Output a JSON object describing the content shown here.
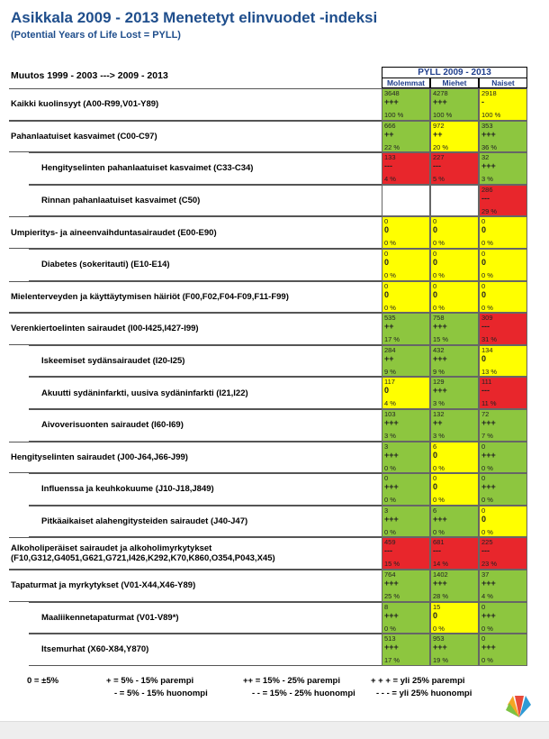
{
  "header": {
    "title": "Asikkala 2009 - 2013 Menetetyt elinvuodet -indeksi",
    "subtitle": "(Potential Years of Life Lost = PYLL)",
    "change": "Muutos 1999 - 2003 ---> 2009 - 2013"
  },
  "table": {
    "group": "PYLL 2009 - 2013",
    "columns": [
      "Molemmat",
      "Miehet",
      "Naiset"
    ],
    "colors": {
      "green": "#8dc63f",
      "yellow": "#ffff00",
      "red": "#e8262c",
      "white": "#ffffff"
    },
    "rows": [
      {
        "label": "Kaikki kuolinsyyt (A00-R99,V01-Y89)",
        "indent": false,
        "cells": [
          {
            "value": 3648,
            "sign": "+++",
            "pct": "100 %",
            "color": "green"
          },
          {
            "value": 4278,
            "sign": "+++",
            "pct": "100 %",
            "color": "green"
          },
          {
            "value": 2918,
            "sign": "-",
            "pct": "100 %",
            "color": "yellow"
          }
        ]
      },
      {
        "label": "Pahanlaatuiset kasvaimet (C00-C97)",
        "indent": false,
        "cells": [
          {
            "value": 666,
            "sign": "++",
            "pct": "22 %",
            "color": "green"
          },
          {
            "value": 972,
            "sign": "++",
            "pct": "20 %",
            "color": "yellow"
          },
          {
            "value": 353,
            "sign": "+++",
            "pct": "36 %",
            "color": "green"
          }
        ]
      },
      {
        "label": "Hengityselinten pahanlaatuiset kasvaimet (C33-C34)",
        "indent": true,
        "cells": [
          {
            "value": 133,
            "sign": "---",
            "pct": "4 %",
            "color": "red"
          },
          {
            "value": 227,
            "sign": "---",
            "pct": "5 %",
            "color": "red"
          },
          {
            "value": 32,
            "sign": "+++",
            "pct": "3 %",
            "color": "green"
          }
        ]
      },
      {
        "label": "Rinnan pahanlaatuiset kasvaimet (C50)",
        "indent": true,
        "cells": [
          {
            "color": "white"
          },
          {
            "color": "white"
          },
          {
            "value": 286,
            "sign": "---",
            "pct": "29 %",
            "color": "red"
          }
        ]
      },
      {
        "label": "Umpieritys- ja aineenvaihduntasairaudet (E00-E90)",
        "indent": false,
        "cells": [
          {
            "value": 0,
            "sign": "0",
            "pct": "0 %",
            "color": "yellow"
          },
          {
            "value": 0,
            "sign": "0",
            "pct": "0 %",
            "color": "yellow"
          },
          {
            "value": 0,
            "sign": "0",
            "pct": "0 %",
            "color": "yellow"
          }
        ]
      },
      {
        "label": "Diabetes (sokeritauti) (E10-E14)",
        "indent": true,
        "cells": [
          {
            "value": 0,
            "sign": "0",
            "pct": "0 %",
            "color": "yellow"
          },
          {
            "value": 0,
            "sign": "0",
            "pct": "0 %",
            "color": "yellow"
          },
          {
            "value": 0,
            "sign": "0",
            "pct": "0 %",
            "color": "yellow"
          }
        ]
      },
      {
        "label": "Mielenterveyden ja käyttäytymisen häiriöt (F00,F02,F04-F09,F11-F99)",
        "indent": false,
        "cells": [
          {
            "value": 0,
            "sign": "0",
            "pct": "0 %",
            "color": "yellow"
          },
          {
            "value": 0,
            "sign": "0",
            "pct": "0 %",
            "color": "yellow"
          },
          {
            "value": 0,
            "sign": "0",
            "pct": "0 %",
            "color": "yellow"
          }
        ]
      },
      {
        "label": "Verenkiertoelinten sairaudet (I00-I425,I427-I99)",
        "indent": false,
        "cells": [
          {
            "value": 535,
            "sign": "++",
            "pct": "17 %",
            "color": "green"
          },
          {
            "value": 758,
            "sign": "+++",
            "pct": "15 %",
            "color": "green"
          },
          {
            "value": 309,
            "sign": "---",
            "pct": "31 %",
            "color": "red"
          }
        ]
      },
      {
        "label": "Iskeemiset sydänsairaudet (I20-I25)",
        "indent": true,
        "cells": [
          {
            "value": 284,
            "sign": "++",
            "pct": "9 %",
            "color": "green"
          },
          {
            "value": 432,
            "sign": "+++",
            "pct": "9 %",
            "color": "green"
          },
          {
            "value": 134,
            "sign": "0",
            "pct": "13 %",
            "color": "yellow"
          }
        ]
      },
      {
        "label": "Akuutti sydäninfarkti, uusiva sydäninfarkti (I21,I22)",
        "indent": true,
        "cells": [
          {
            "value": 117,
            "sign": "0",
            "pct": "4 %",
            "color": "yellow"
          },
          {
            "value": 129,
            "sign": "+++",
            "pct": "3 %",
            "color": "green"
          },
          {
            "value": 111,
            "sign": "---",
            "pct": "11 %",
            "color": "red"
          }
        ]
      },
      {
        "label": "Aivoverisuonten sairaudet (I60-I69)",
        "indent": true,
        "cells": [
          {
            "value": 103,
            "sign": "+++",
            "pct": "3 %",
            "color": "green"
          },
          {
            "value": 132,
            "sign": "++",
            "pct": "3 %",
            "color": "green"
          },
          {
            "value": 72,
            "sign": "+++",
            "pct": "7 %",
            "color": "green"
          }
        ]
      },
      {
        "label": "Hengityselinten sairaudet (J00-J64,J66-J99)",
        "indent": false,
        "cells": [
          {
            "value": 3,
            "sign": "+++",
            "pct": "0 %",
            "color": "green"
          },
          {
            "value": 6,
            "sign": "0",
            "pct": "0 %",
            "color": "yellow"
          },
          {
            "value": 0,
            "sign": "+++",
            "pct": "0 %",
            "color": "green"
          }
        ]
      },
      {
        "label": "Influenssa ja keuhkokuume (J10-J18,J849)",
        "indent": true,
        "cells": [
          {
            "value": 0,
            "sign": "+++",
            "pct": "0 %",
            "color": "green"
          },
          {
            "value": 0,
            "sign": "0",
            "pct": "0 %",
            "color": "yellow"
          },
          {
            "value": 0,
            "sign": "+++",
            "pct": "0 %",
            "color": "green"
          }
        ]
      },
      {
        "label": "Pitkäaikaiset alahengitysteiden sairaudet (J40-J47)",
        "indent": true,
        "cells": [
          {
            "value": 3,
            "sign": "+++",
            "pct": "0 %",
            "color": "green"
          },
          {
            "value": 6,
            "sign": "+++",
            "pct": "0 %",
            "color": "green"
          },
          {
            "value": 0,
            "sign": "0",
            "pct": "0 %",
            "color": "yellow"
          }
        ]
      },
      {
        "label": "Alkoholiperäiset sairaudet ja alkoholimyrkytykset (F10,G312,G4051,G621,G721,I426,K292,K70,K860,O354,P043,X45)",
        "indent": false,
        "cells": [
          {
            "value": 459,
            "sign": "---",
            "pct": "15 %",
            "color": "red"
          },
          {
            "value": 681,
            "sign": "---",
            "pct": "14 %",
            "color": "red"
          },
          {
            "value": 225,
            "sign": "---",
            "pct": "23 %",
            "color": "red"
          }
        ]
      },
      {
        "label": "Tapaturmat ja myrkytykset (V01-X44,X46-Y89)",
        "indent": false,
        "cells": [
          {
            "value": 764,
            "sign": "+++",
            "pct": "25 %",
            "color": "green"
          },
          {
            "value": 1402,
            "sign": "+++",
            "pct": "28 %",
            "color": "green"
          },
          {
            "value": 37,
            "sign": "+++",
            "pct": "4 %",
            "color": "green"
          }
        ]
      },
      {
        "label": "Maaliikennetapaturmat (V01-V89*)",
        "indent": true,
        "cells": [
          {
            "value": 8,
            "sign": "+++",
            "pct": "0 %",
            "color": "green"
          },
          {
            "value": 15,
            "sign": "0",
            "pct": "0 %",
            "color": "yellow"
          },
          {
            "value": 0,
            "sign": "+++",
            "pct": "0 %",
            "color": "green"
          }
        ]
      },
      {
        "label": "Itsemurhat (X60-X84,Y870)",
        "indent": true,
        "cells": [
          {
            "value": 513,
            "sign": "+++",
            "pct": "17 %",
            "color": "green"
          },
          {
            "value": 953,
            "sign": "+++",
            "pct": "19 %",
            "color": "green"
          },
          {
            "value": 0,
            "sign": "+++",
            "pct": "0 %",
            "color": "green"
          }
        ]
      }
    ]
  },
  "legend": [
    "0 = ±5%",
    "+ = 5% - 15% parempi",
    "++ = 15% - 25% parempi",
    "+ + + = yli 25% parempi",
    "- = 5% - 15% huonompi",
    "- - = 15% - 25% huonompi",
    "- - - = yli 25% huonompi"
  ]
}
